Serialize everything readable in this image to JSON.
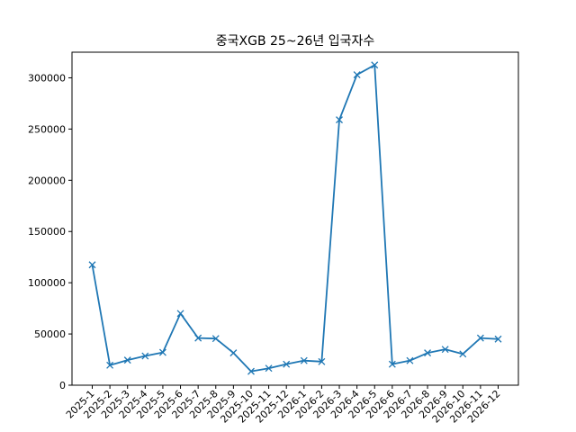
{
  "chart_data": {
    "type": "line",
    "title": "중국XGB 25~26년 입국자수",
    "xlabel": "",
    "ylabel": "",
    "categories": [
      "2025-1",
      "2025-2",
      "2025-3",
      "2025-4",
      "2025-5",
      "2025-6",
      "2025-7",
      "2025-8",
      "2025-9",
      "2025-10",
      "2025-11",
      "2025-12",
      "2026-1",
      "2026-2",
      "2026-3",
      "2026-4",
      "2026-5",
      "2026-6",
      "2026-7",
      "2026-8",
      "2026-9",
      "2026-10",
      "2026-11",
      "2026-12"
    ],
    "series": [
      {
        "values": [
          117500,
          19500,
          24500,
          28500,
          32000,
          70000,
          46000,
          45500,
          31500,
          13500,
          16500,
          20500,
          24000,
          23000,
          259000,
          303000,
          312500,
          20500,
          24000,
          31500,
          35000,
          30500,
          46000,
          45000
        ],
        "color": "#1f77b4",
        "marker": "x"
      }
    ],
    "ylim": [
      0,
      325000
    ],
    "yticks": [
      "0",
      "50000",
      "100000",
      "150000",
      "200000",
      "250000",
      "300000"
    ],
    "ytick_values": [
      0,
      50000,
      100000,
      150000,
      200000,
      250000,
      300000
    ],
    "grid": false,
    "legend": "none"
  }
}
